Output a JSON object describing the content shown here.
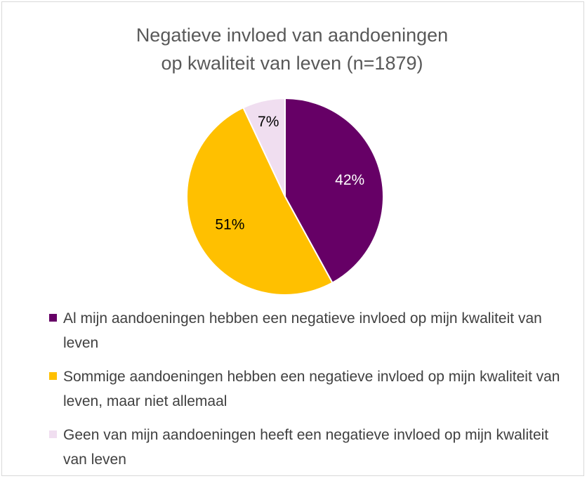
{
  "chart_data": {
    "type": "pie",
    "title_line1": "Negatieve invloed van aandoeningen",
    "title_line2": "op kwaliteit van leven (n=1879)",
    "slices": [
      {
        "label": "Al mijn aandoeningen hebben een negatieve invloed op mijn kwaliteit van leven",
        "value": 42,
        "display": "42%",
        "color": "#660066",
        "label_color": "#ffffff"
      },
      {
        "label": "Sommige aandoeningen hebben een negatieve invloed op mijn kwaliteit van leven, maar niet allemaal",
        "value": 51,
        "display": "51%",
        "color": "#ffc000",
        "label_color": "#000000"
      },
      {
        "label": "Geen van mijn aandoeningen heeft een negatieve invloed op mijn kwaliteit van leven",
        "value": 7,
        "display": "7%",
        "color": "#f0def0",
        "label_color": "#000000"
      }
    ],
    "legend_position": "bottom"
  }
}
